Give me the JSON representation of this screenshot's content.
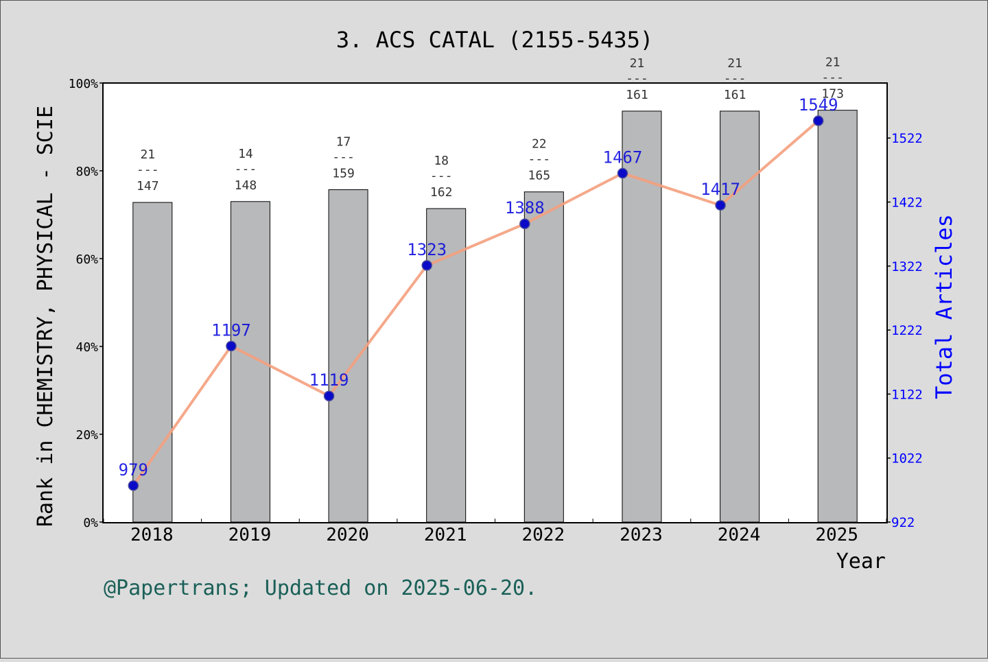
{
  "chart_data": {
    "type": "bar",
    "title": "3. ACS CATAL (2155-5435)",
    "xlabel": "Year",
    "ylabel": "Rank in CHEMISTRY, PHYSICAL - SCIE",
    "y2label": "Total Articles",
    "footer": "@Papertrans; Updated on 2025-06-20.",
    "categories": [
      "2018",
      "2019",
      "2020",
      "2021",
      "2022",
      "2023",
      "2024",
      "2025"
    ],
    "ylim": [
      0,
      100
    ],
    "yticks": [
      "0%",
      "20%",
      "40%",
      "60%",
      "80%",
      "100%"
    ],
    "y2lim": [
      922,
      1608
    ],
    "y2ticks": [
      "922",
      "1022",
      "1122",
      "1222",
      "1322",
      "1422",
      "1522"
    ],
    "series": [
      {
        "kind": "bar",
        "values": [
          72.8,
          73.0,
          75.7,
          71.4,
          75.2,
          93.6,
          93.6,
          93.8
        ],
        "bar_labels": [
          {
            "rank": "21",
            "sep": "---",
            "total": "147"
          },
          {
            "rank": "14",
            "sep": "---",
            "total": "148"
          },
          {
            "rank": "17",
            "sep": "---",
            "total": "159"
          },
          {
            "rank": "18",
            "sep": "---",
            "total": "162"
          },
          {
            "rank": "22",
            "sep": "---",
            "total": "165"
          },
          {
            "rank": "21",
            "sep": "---",
            "total": "161"
          },
          {
            "rank": "21",
            "sep": "---",
            "total": "161"
          },
          {
            "rank": "21",
            "sep": "---",
            "total": "173"
          }
        ]
      },
      {
        "kind": "line",
        "axis": "right",
        "values": [
          979,
          1197,
          1119,
          1323,
          1388,
          1467,
          1417,
          1549
        ],
        "labels": [
          "979",
          "1197",
          "1119",
          "1323",
          "1388",
          "1467",
          "1417",
          "1549"
        ]
      }
    ],
    "colors": {
      "bar": "#b8b9bb",
      "line": "#f4a07e",
      "marker": "#0a0ac8",
      "right_axis": "#0000ff",
      "footer": "#1a6058",
      "plot_bg": "#ffffff",
      "page_bg": "#dcdcdc"
    }
  }
}
